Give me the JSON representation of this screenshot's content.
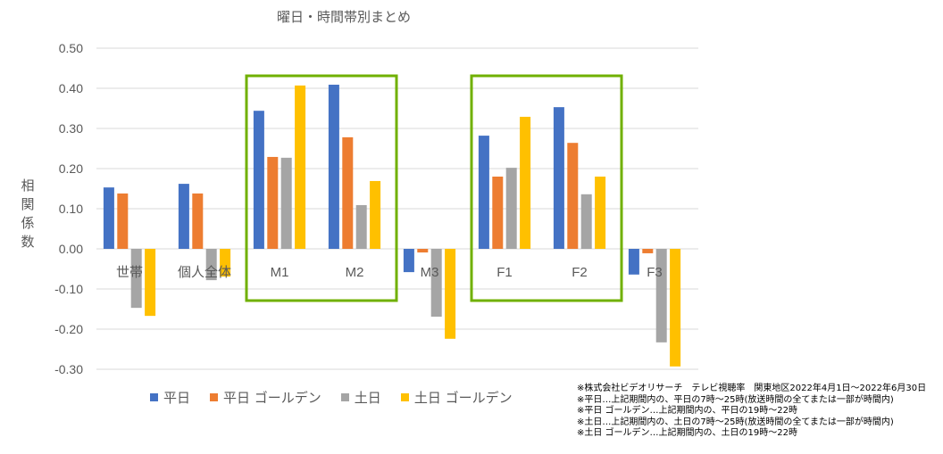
{
  "chart_data": {
    "type": "bar",
    "title": "曜日・時間帯別まとめ",
    "ylabel": "相関係数",
    "ylim": [
      -0.3,
      0.5
    ],
    "yticks": [
      "0.50",
      "0.40",
      "0.30",
      "0.20",
      "0.10",
      "0.00",
      "-0.10",
      "-0.20",
      "-0.30"
    ],
    "ytick_values": [
      0.5,
      0.4,
      0.3,
      0.2,
      0.1,
      0,
      -0.1,
      -0.2,
      -0.3
    ],
    "categories": [
      "世帯",
      "個人全体",
      "M1",
      "M2",
      "M3",
      "F1",
      "F2",
      "F3"
    ],
    "series": [
      {
        "name": "平日",
        "color": "#4472C4",
        "values": [
          0.153,
          0.162,
          0.344,
          0.409,
          -0.058,
          0.282,
          0.353,
          -0.064
        ]
      },
      {
        "name": "平日 ゴールデン",
        "color": "#ED7D31",
        "values": [
          0.138,
          0.138,
          0.229,
          0.278,
          -0.009,
          0.18,
          0.264,
          -0.011
        ]
      },
      {
        "name": "土日",
        "color": "#A5A5A5",
        "values": [
          -0.147,
          -0.078,
          0.227,
          0.109,
          -0.169,
          0.202,
          0.136,
          -0.233
        ]
      },
      {
        "name": "土日 ゴールデン",
        "color": "#FFC000",
        "values": [
          -0.167,
          -0.069,
          0.407,
          0.169,
          -0.224,
          0.329,
          0.18,
          -0.293
        ]
      }
    ],
    "highlight_groups": [
      [
        "M1",
        "M2"
      ],
      [
        "F1",
        "F2"
      ]
    ],
    "highlight_color": "#70B000",
    "grid": true,
    "legend": "bottom"
  },
  "notes": [
    "※株式会社ビデオリサーチ　テレビ視聴率　関東地区2022年4月1日～2022年6月30日",
    "※平日…上記期間内の、平日の7時～25時(放送時間の全てまたは一部が時間内)",
    "※平日 ゴールデン…上記期間内の、平日の19時～22時",
    "※土日…上記期間内の、土日の7時～25時(放送時間の全てまたは一部が時間内)",
    "※土日 ゴールデン…上記期間内の、土日の19時～22時"
  ]
}
